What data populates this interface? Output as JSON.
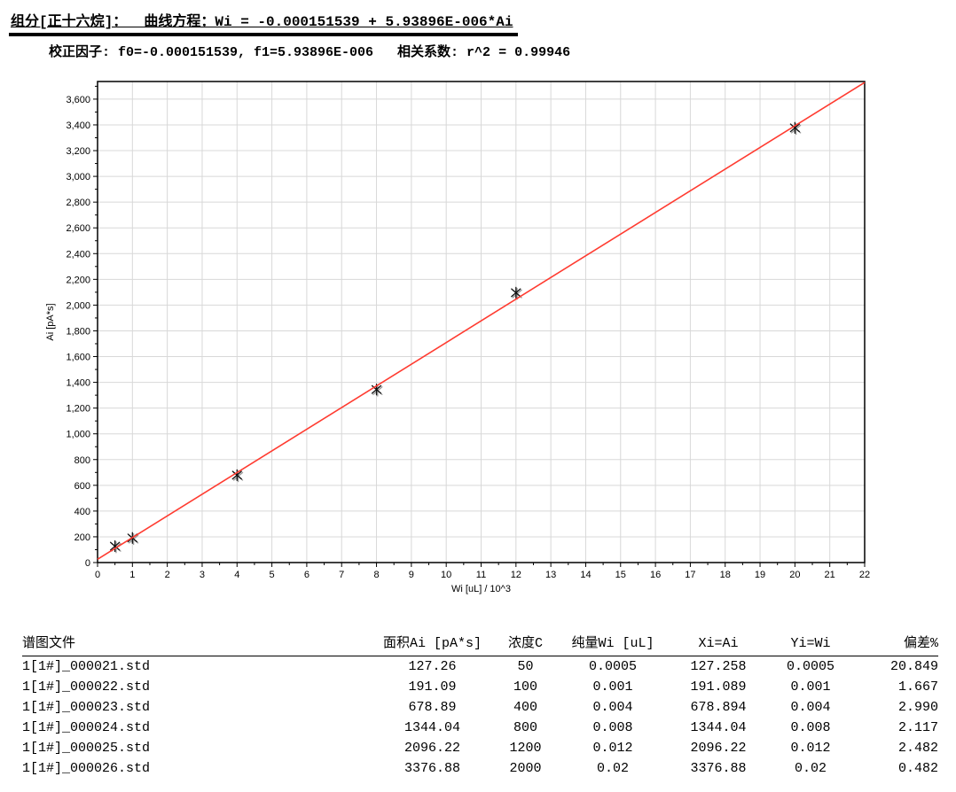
{
  "header": {
    "title": "组分[正十六烷]：  曲线方程：Wi = -0.000151539 + 5.93896E-006*Ai",
    "subtitle": "校正因子: f0=-0.000151539, f1=5.93896E-006   相关系数: r^2 = 0.99946"
  },
  "chart_data": {
    "type": "scatter",
    "xlabel": "Wi [uL] / 10^3",
    "ylabel": "Ai [pA*s]",
    "xlim": [
      0,
      22
    ],
    "ylim": [
      0,
      3737
    ],
    "x_major_tick": 1,
    "x_minor_tick": 0.5,
    "y_major_tick": 200,
    "y_minor_tick": 100,
    "y_label_max": 3600,
    "grid": true,
    "grid_color": "#d8d8d8",
    "axis_color": "#000000",
    "line_color": "#ff3b30",
    "marker": "asterisk",
    "marker_color": "#111111",
    "marker_shadow_color": "#9a9a9a",
    "points": {
      "x": [
        0.5,
        1,
        4,
        8,
        12,
        20
      ],
      "y": [
        127.26,
        191.09,
        678.89,
        1344.04,
        2096.22,
        3376.88
      ]
    },
    "fit": {
      "slope": 168.379,
      "intercept": 25.516,
      "equation": "Wi = -0.000151539 + 5.93896E-006*Ai",
      "r_squared": 0.99946
    }
  },
  "table": {
    "columns": [
      "谱图文件",
      "面积Ai [pA*s]",
      "浓度C",
      "纯量Wi [uL]",
      "Xi=Ai",
      "Yi=Wi",
      "偏差%"
    ],
    "rows": [
      [
        "1[1#]_000021.std",
        "127.26",
        "50",
        "0.0005",
        "127.258",
        "0.0005",
        "20.849"
      ],
      [
        "1[1#]_000022.std",
        "191.09",
        "100",
        "0.001",
        "191.089",
        "0.001",
        "1.667"
      ],
      [
        "1[1#]_000023.std",
        "678.89",
        "400",
        "0.004",
        "678.894",
        "0.004",
        "2.990"
      ],
      [
        "1[1#]_000024.std",
        "1344.04",
        "800",
        "0.008",
        "1344.04",
        "0.008",
        "2.117"
      ],
      [
        "1[1#]_000025.std",
        "2096.22",
        "1200",
        "0.012",
        "2096.22",
        "0.012",
        "2.482"
      ],
      [
        "1[1#]_000026.std",
        "3376.88",
        "2000",
        "0.02",
        "3376.88",
        "0.02",
        "0.482"
      ]
    ]
  }
}
